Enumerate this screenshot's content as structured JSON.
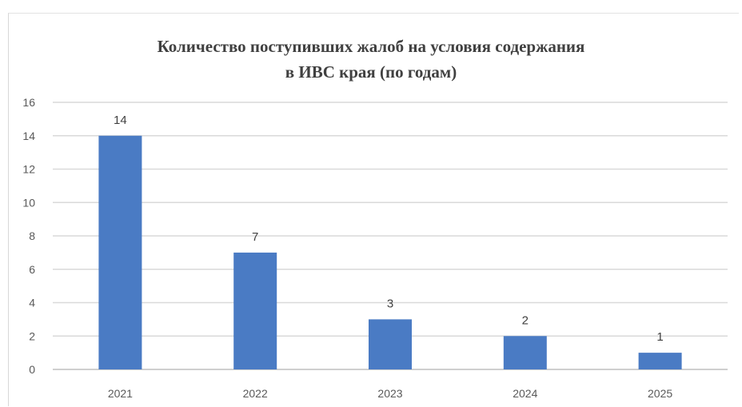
{
  "chart_data": {
    "type": "bar",
    "title_line1": "Количество поступивших жалоб на условия содержания",
    "title_line2": "в ИВС края (по годам)",
    "categories": [
      "2021",
      "2022",
      "2023",
      "2024",
      "2025"
    ],
    "values": [
      14,
      7,
      3,
      2,
      1
    ],
    "data_labels": [
      "14",
      "7",
      "3",
      "2",
      "1"
    ],
    "y_ticks": [
      "0",
      "2",
      "4",
      "6",
      "8",
      "10",
      "12",
      "14",
      "16"
    ],
    "ylim": [
      0,
      16
    ],
    "y_step": 2,
    "grid": true,
    "legend": "none",
    "bar_color": "#4a7bc4",
    "xlabel": "",
    "ylabel": ""
  }
}
